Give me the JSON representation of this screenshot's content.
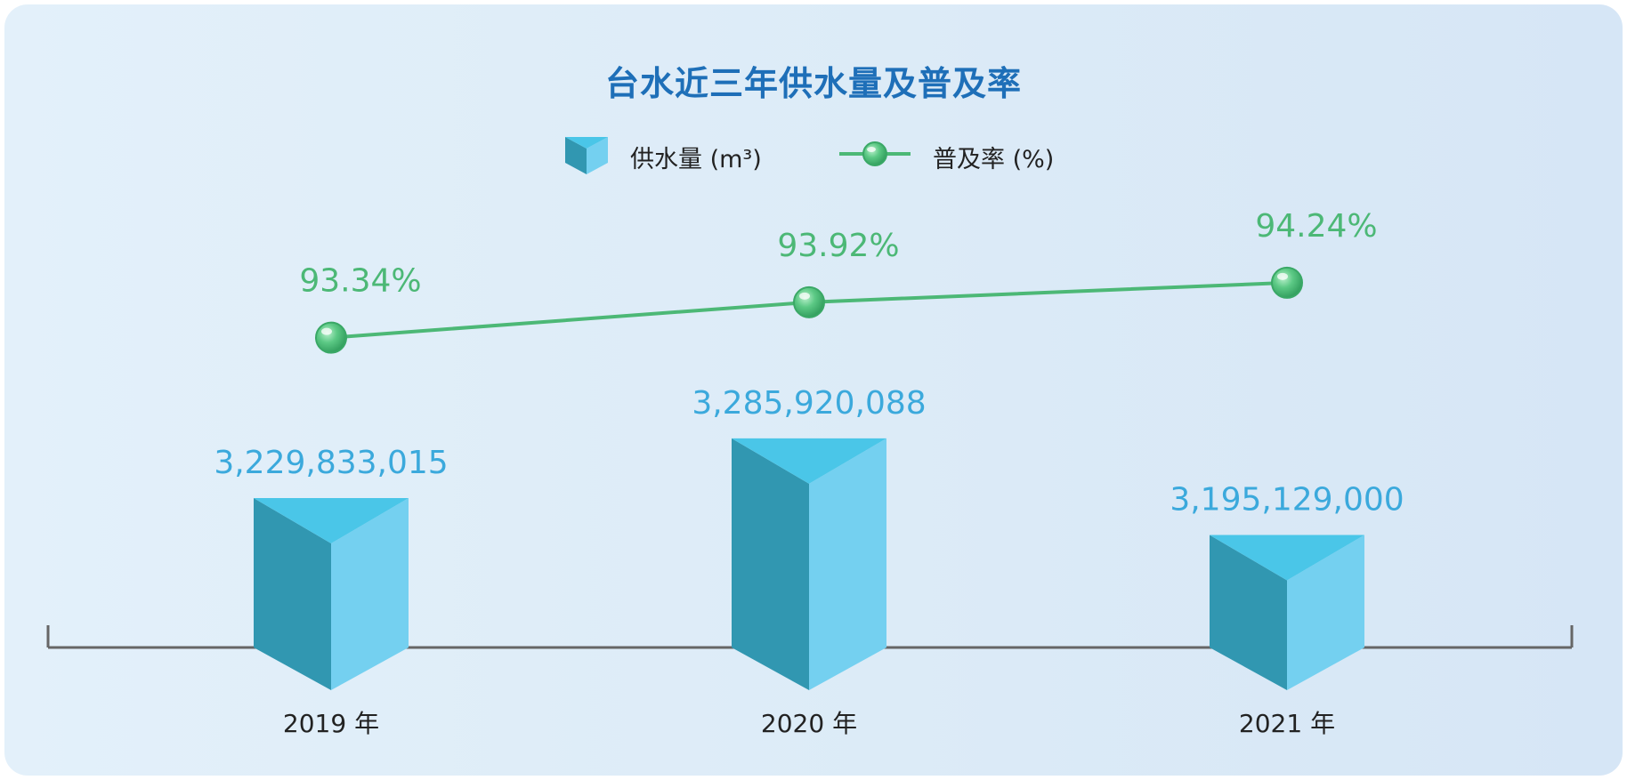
{
  "chart_data": {
    "type": "bar",
    "title": "台水近三年供水量及普及率",
    "categories": [
      "2019 年",
      "2020 年",
      "2021 年"
    ],
    "series": [
      {
        "name": "供水量 (m³)",
        "type": "bar",
        "values": [
          3229833015,
          3285920088,
          3195129000
        ],
        "labels": [
          "3,229,833,015",
          "3,285,920,088",
          "3,195,129,000"
        ]
      },
      {
        "name": "普及率 (%)",
        "type": "line",
        "values": [
          93.34,
          93.92,
          94.24
        ],
        "labels": [
          "93.34%",
          "93.92%",
          "94.24%"
        ]
      }
    ],
    "xlabel": "",
    "ylabel": "",
    "grid": false,
    "legend_position": "top-center"
  },
  "colors": {
    "title": "#1e6fb8",
    "bar_top": "#4ac6e8",
    "bar_left": "#3197b1",
    "bar_right": "#74d0f0",
    "bar_label": "#3ba9dc",
    "line": "#4cb876",
    "line_label": "#4cb876",
    "axis": "#666666",
    "text": "#222222"
  }
}
